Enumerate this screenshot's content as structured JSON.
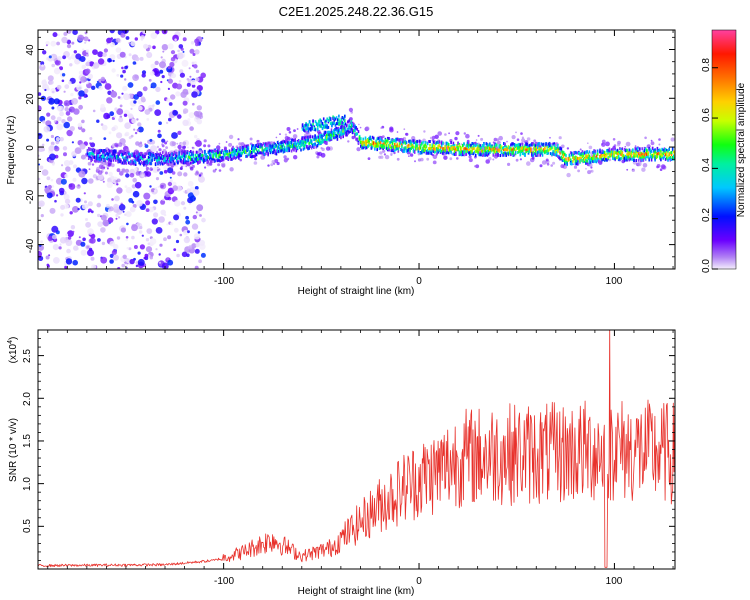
{
  "title": "C2E1.2025.248.22.36.G15",
  "colors": {
    "snr_line": "#e8312b",
    "spectrogram_background": "#ffffff"
  },
  "chart_data": [
    {
      "type": "heatmap",
      "name": "spectrogram",
      "xlabel": "Height of straight line (km)",
      "ylabel": "Frequency (Hz)",
      "xlim": [
        -195,
        131
      ],
      "ylim": [
        -50,
        48
      ],
      "x_tick_labels": [
        "-100",
        "0",
        "100"
      ],
      "y_tick_labels": [
        "-40",
        "-20",
        "0",
        "20",
        "40"
      ],
      "colorbar": {
        "label": "Normalized spectral amplitude",
        "range": [
          0,
          0.95
        ],
        "tick_labels": [
          "0.0",
          "0.2",
          "0.4",
          "0.6",
          "0.8"
        ]
      },
      "ridge": [
        {
          "x": -170,
          "y": -3
        },
        {
          "x": -140,
          "y": -5
        },
        {
          "x": -110,
          "y": -4
        },
        {
          "x": -90,
          "y": -2
        },
        {
          "x": -70,
          "y": 0
        },
        {
          "x": -55,
          "y": 2
        },
        {
          "x": -40,
          "y": 6
        },
        {
          "x": -35,
          "y": 9
        },
        {
          "x": -30,
          "y": 2
        },
        {
          "x": 0,
          "y": 0
        },
        {
          "x": 30,
          "y": -1
        },
        {
          "x": 60,
          "y": -1
        },
        {
          "x": 70,
          "y": -1
        },
        {
          "x": 75,
          "y": -5
        },
        {
          "x": 100,
          "y": -3
        },
        {
          "x": 131,
          "y": -3
        }
      ]
    },
    {
      "type": "line",
      "name": "snr",
      "xlabel": "Height of straight line (km)",
      "ylabel": "SNR (10 * v/v)",
      "y_multiplier_label": "(x10",
      "y_multiplier_exp": "4",
      "xlim": [
        -195,
        131
      ],
      "ylim": [
        0,
        2.8
      ],
      "x_tick_labels": [
        "-100",
        "0",
        "100"
      ],
      "y_tick_labels": [
        "0.5",
        "1.0",
        "1.5",
        "2.0",
        "2.5"
      ],
      "envelope": [
        {
          "x": -195,
          "y": 0.04
        },
        {
          "x": -130,
          "y": 0.05
        },
        {
          "x": -105,
          "y": 0.1
        },
        {
          "x": -90,
          "y": 0.2
        },
        {
          "x": -75,
          "y": 0.35
        },
        {
          "x": -60,
          "y": 0.15
        },
        {
          "x": -45,
          "y": 0.25
        },
        {
          "x": -30,
          "y": 0.55
        },
        {
          "x": -20,
          "y": 0.75
        },
        {
          "x": -5,
          "y": 1.0
        },
        {
          "x": 10,
          "y": 1.15
        },
        {
          "x": 20,
          "y": 1.3
        },
        {
          "x": 40,
          "y": 1.35
        },
        {
          "x": 70,
          "y": 1.35
        },
        {
          "x": 100,
          "y": 1.4
        },
        {
          "x": 131,
          "y": 1.35
        }
      ]
    }
  ]
}
